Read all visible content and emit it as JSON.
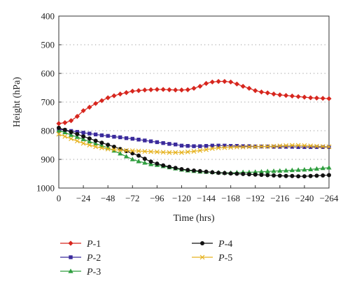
{
  "chart_data": {
    "type": "line",
    "xlabel": "Time (hrs)",
    "ylabel": "Height (hPa)",
    "xlim": [
      0,
      -264
    ],
    "ylim": [
      1000,
      400
    ],
    "y_inverted": true,
    "x_reversed": true,
    "x_ticks": [
      "0",
      "−24",
      "−48",
      "−72",
      "−96",
      "−120",
      "−144",
      "−168",
      "−192",
      "−216",
      "−240",
      "−264"
    ],
    "x_tick_values": [
      0,
      -24,
      -48,
      -72,
      -96,
      -120,
      -144,
      -168,
      -192,
      -216,
      -240,
      -264
    ],
    "y_ticks": [
      "400",
      "500",
      "600",
      "700",
      "800",
      "900",
      "1000"
    ],
    "y_tick_values": [
      400,
      500,
      600,
      700,
      800,
      900,
      1000
    ],
    "grid": "horizontal dotted",
    "legend_placement": "bottom",
    "x": [
      0,
      -6,
      -12,
      -18,
      -24,
      -30,
      -36,
      -42,
      -48,
      -54,
      -60,
      -66,
      -72,
      -78,
      -84,
      -90,
      -96,
      -102,
      -108,
      -114,
      -120,
      -126,
      -132,
      -138,
      -144,
      -150,
      -156,
      -162,
      -168,
      -174,
      -180,
      -186,
      -192,
      -198,
      -204,
      -210,
      -216,
      -222,
      -228,
      -234,
      -240,
      -246,
      -252,
      -258,
      -264
    ],
    "series": [
      {
        "name_prefix": "P",
        "name_suffix": "-1",
        "color": "#d7261e",
        "marker": "diamond",
        "values": [
          775,
          772,
          765,
          750,
          730,
          718,
          705,
          695,
          685,
          678,
          672,
          667,
          662,
          660,
          658,
          657,
          656,
          656,
          657,
          658,
          658,
          657,
          652,
          645,
          635,
          630,
          628,
          628,
          630,
          637,
          645,
          652,
          660,
          665,
          668,
          672,
          675,
          677,
          679,
          681,
          683,
          685,
          686,
          687,
          688
        ]
      },
      {
        "name_prefix": "P",
        "name_suffix": "-2",
        "color": "#3b2b9c",
        "marker": "square",
        "values": [
          795,
          798,
          801,
          804,
          807,
          810,
          813,
          816,
          818,
          821,
          823,
          826,
          828,
          831,
          834,
          837,
          840,
          843,
          846,
          848,
          852,
          853,
          854,
          854,
          853,
          852,
          852,
          852,
          853,
          853,
          854,
          854,
          855,
          855,
          855,
          856,
          856,
          856,
          856,
          857,
          857,
          857,
          857,
          857,
          857
        ]
      },
      {
        "name_prefix": "P",
        "name_suffix": "-3",
        "color": "#2f9e3f",
        "marker": "triangle",
        "values": [
          800,
          806,
          815,
          822,
          830,
          838,
          845,
          852,
          860,
          870,
          880,
          890,
          900,
          907,
          912,
          917,
          920,
          924,
          928,
          932,
          936,
          939,
          941,
          943,
          944,
          945,
          946,
          947,
          947,
          946,
          945,
          945,
          944,
          943,
          942,
          941,
          940,
          939,
          938,
          937,
          936,
          935,
          933,
          931,
          929
        ]
      },
      {
        "name_prefix": "P",
        "name_suffix": "-4",
        "color": "#111111",
        "marker": "circle",
        "values": [
          790,
          797,
          805,
          812,
          820,
          827,
          835,
          842,
          849,
          856,
          864,
          871,
          879,
          887,
          898,
          908,
          915,
          921,
          926,
          930,
          934,
          937,
          939,
          941,
          943,
          945,
          947,
          948,
          949,
          950,
          951,
          952,
          953,
          954,
          955,
          956,
          957,
          958,
          958,
          959,
          959,
          958,
          957,
          956,
          955
        ]
      },
      {
        "name_prefix": "P",
        "name_suffix": "-5",
        "color": "#e6b21e",
        "marker": "x",
        "values": [
          812,
          820,
          828,
          836,
          844,
          850,
          856,
          860,
          864,
          866,
          868,
          869,
          870,
          871,
          872,
          873,
          874,
          875,
          876,
          876,
          876,
          874,
          872,
          869,
          866,
          862,
          860,
          859,
          858,
          857,
          857,
          856,
          856,
          855,
          855,
          854,
          853,
          852,
          851,
          851,
          852,
          853,
          854,
          855,
          856
        ]
      }
    ]
  }
}
